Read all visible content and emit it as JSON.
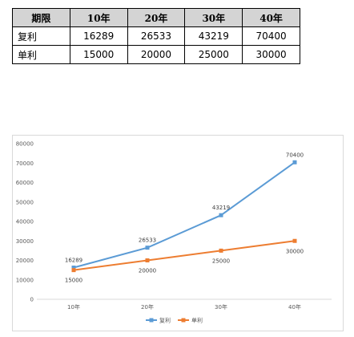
{
  "table": {
    "header": [
      "期限",
      "10年",
      "20年",
      "30年",
      "40年"
    ],
    "rows": [
      {
        "label": "复利",
        "values": [
          "16289",
          "26533",
          "43219",
          "70400"
        ]
      },
      {
        "label": "单利",
        "values": [
          "15000",
          "20000",
          "25000",
          "30000"
        ]
      }
    ]
  },
  "chart_data": {
    "type": "line",
    "categories": [
      "10年",
      "20年",
      "30年",
      "40年"
    ],
    "series": [
      {
        "name": "复利",
        "values": [
          16289,
          26533,
          43219,
          70400
        ],
        "color": "#5b9bd5",
        "label_pos": "above"
      },
      {
        "name": "单利",
        "values": [
          15000,
          20000,
          25000,
          30000
        ],
        "color": "#ed7d31",
        "label_pos": "below"
      }
    ],
    "yticks": [
      "0",
      "10000",
      "20000",
      "30000",
      "40000",
      "50000",
      "60000",
      "70000",
      "80000"
    ],
    "ylim": [
      0,
      80000
    ],
    "grid": "none",
    "legend": "bottom-center",
    "title": "",
    "xlabel": "",
    "ylabel": ""
  }
}
